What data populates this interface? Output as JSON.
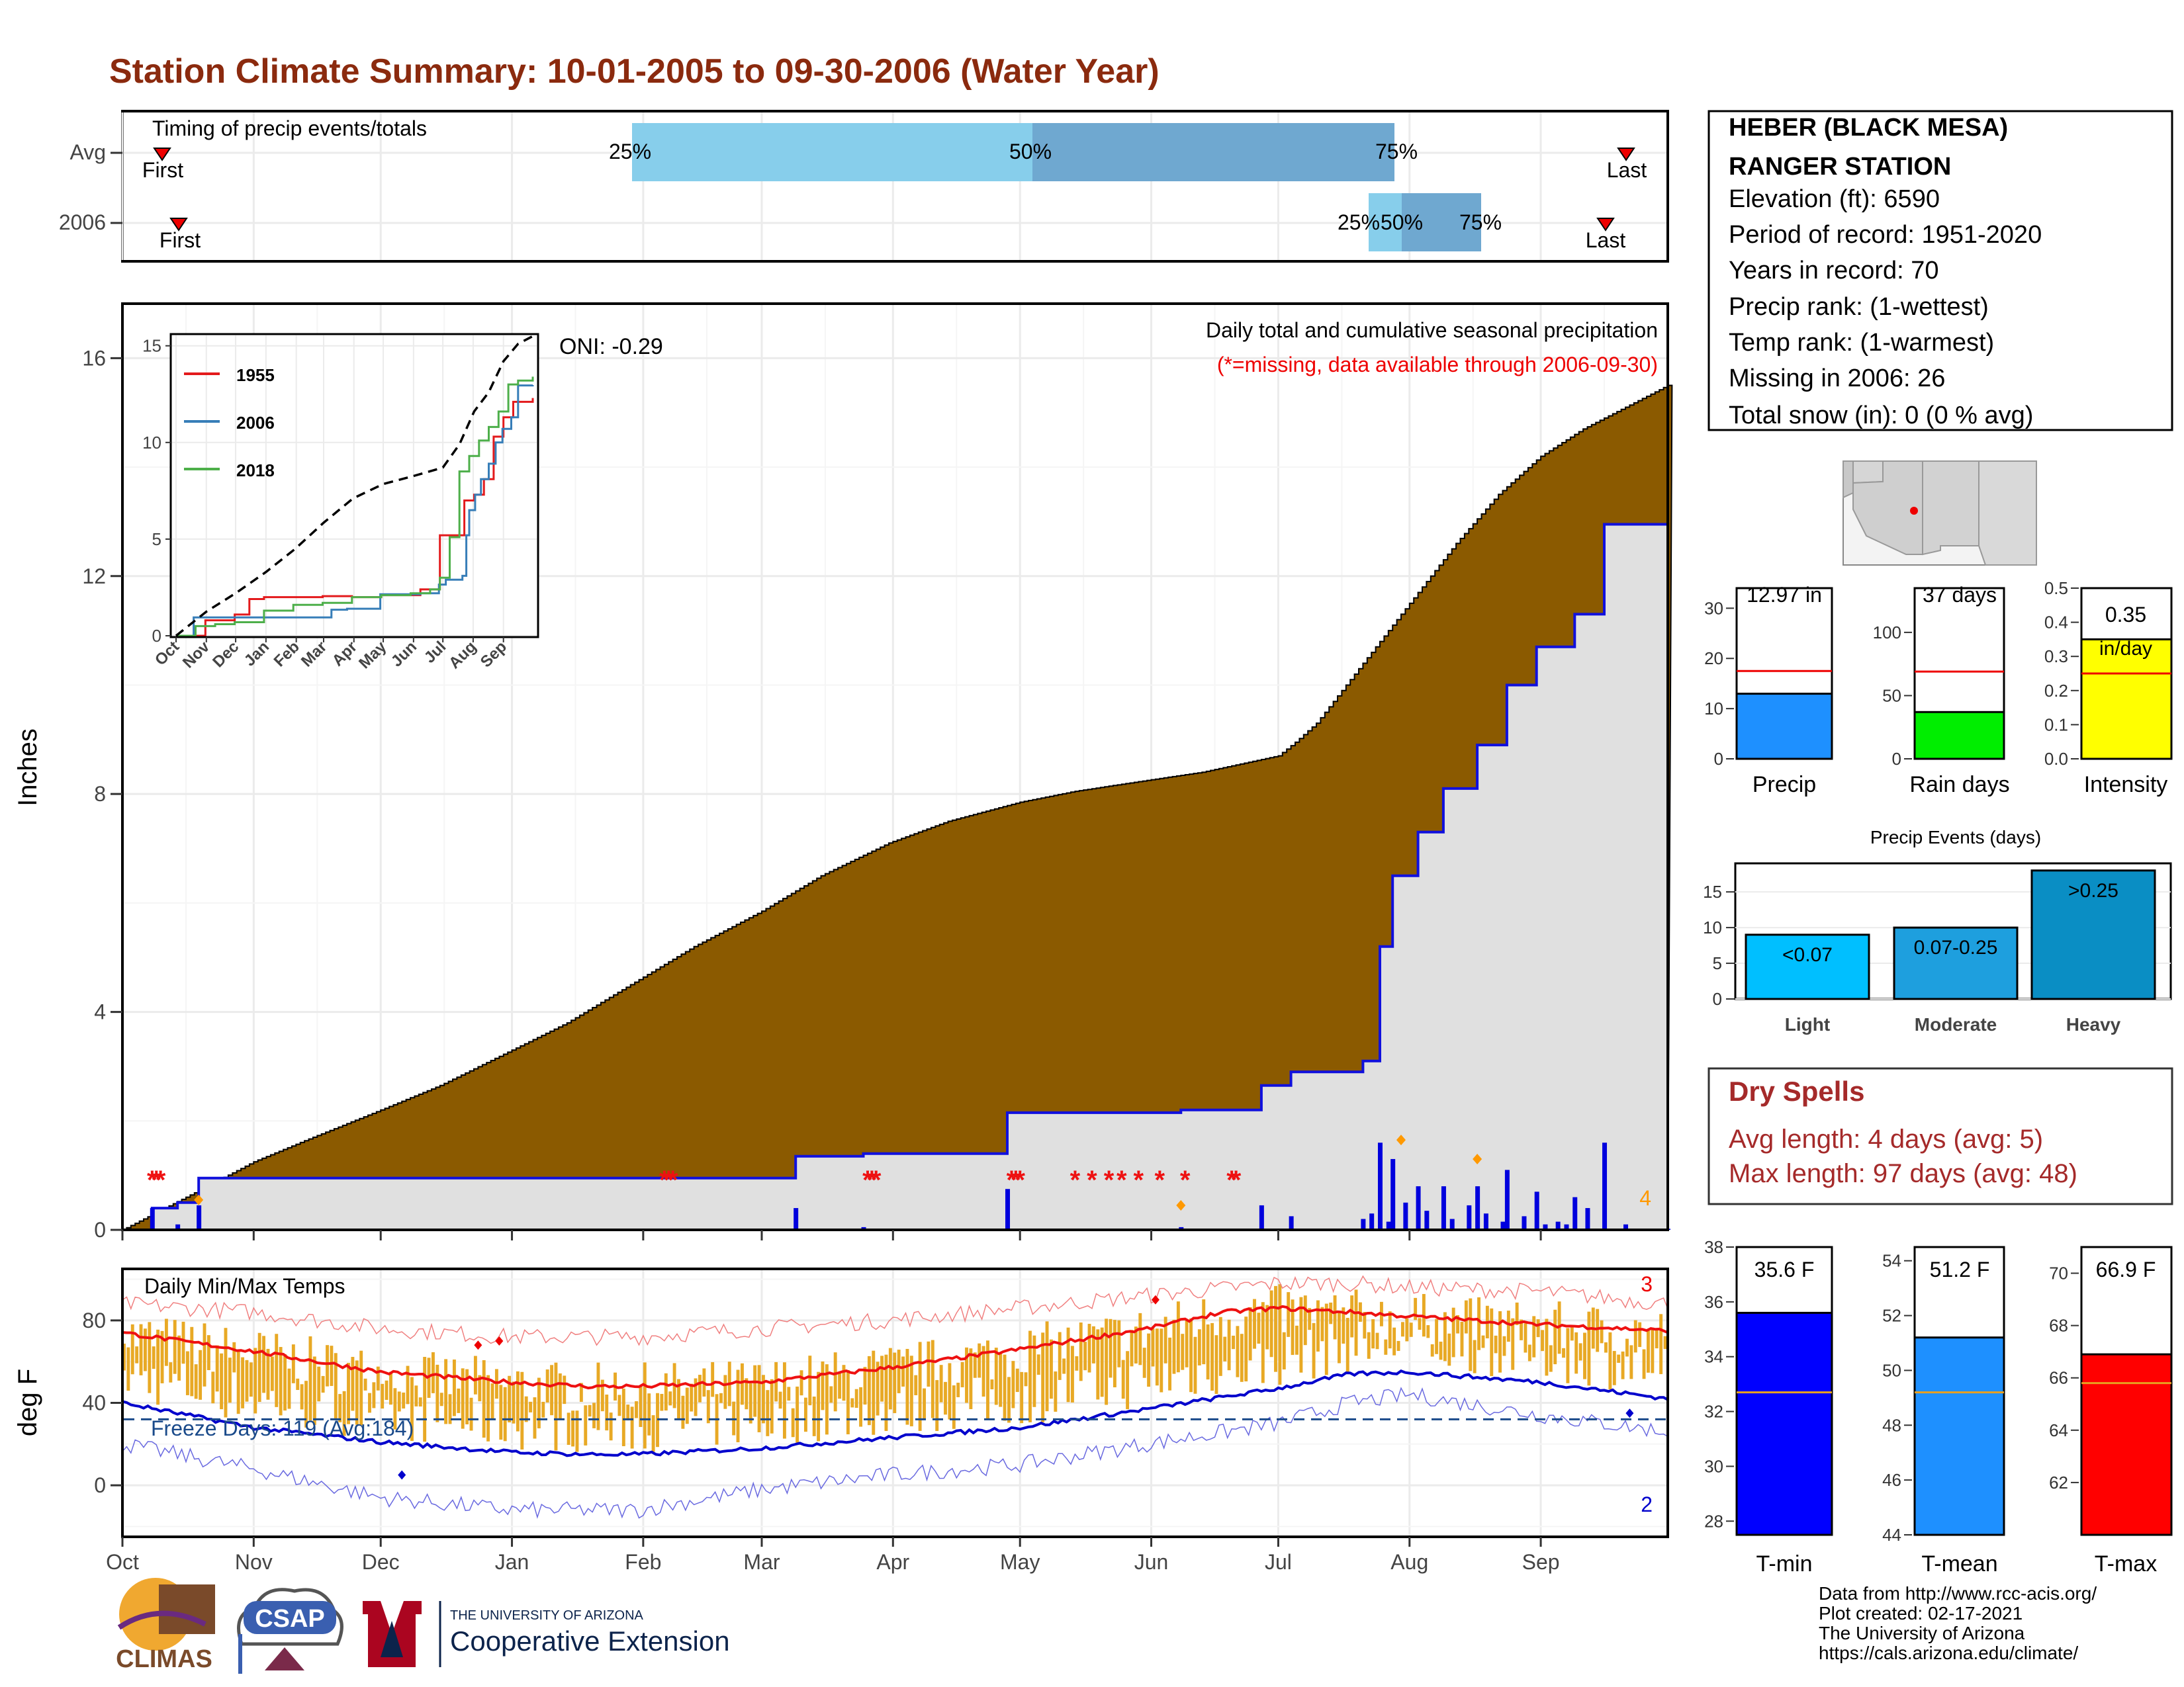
{
  "title": "Station Climate Summary: 10-01-2005 to 09-30-2006 (Water Year)",
  "colors": {
    "title": "#8b2a0e",
    "cum_fill": "#8b5a00",
    "avg_fill": "#e0e0e0",
    "precip_bar": "#0000dd",
    "quart_light": "#87ceeb",
    "quart_dark": "#6fa8d0",
    "temp_bar": "#e8a925",
    "tmax_line": "#ee1111",
    "tmin_line": "#0000cc",
    "missing": "#ee1111",
    "extreme": "#ff9900"
  },
  "timing": {
    "label": "Timing of precip events/totals",
    "rows": [
      "Avg",
      "2006"
    ],
    "first_label": "First",
    "last_label": "Last",
    "quartile_labels": [
      "25%",
      "50%",
      "75%"
    ]
  },
  "station": {
    "lines": [
      "HEBER (BLACK MESA)",
      "RANGER STATION",
      "Elevation (ft): 6590",
      "Period of record: 1951-2020",
      "Years in record: 70",
      "Precip rank:  (1-wettest)",
      "Temp rank:  (1-warmest)",
      "Missing in 2006: 26",
      "Total snow (in): 0 (0 % avg)"
    ]
  },
  "main_plot": {
    "ylabel": "Inches",
    "title_line1": "Daily total and cumulative seasonal precipitation",
    "title_line2": "(*=missing, data available through 2006-09-30)",
    "oni": "ONI: -0.29",
    "extreme_count": "4",
    "month_labels": [
      "Oct",
      "Nov",
      "Dec",
      "Jan",
      "Feb",
      "Mar",
      "Apr",
      "May",
      "Jun",
      "Jul",
      "Aug",
      "Sep"
    ]
  },
  "inset": {
    "legend": [
      "1955",
      "2006",
      "2018"
    ],
    "month_labels": [
      "Oct",
      "Nov",
      "Dec",
      "Jan",
      "Feb",
      "Mar",
      "Apr",
      "May",
      "Jun",
      "Jul",
      "Aug",
      "Sep"
    ]
  },
  "summary_bars": {
    "precip": {
      "value_label": "12.97 in",
      "xlabel": "Precip"
    },
    "rain_days": {
      "value_label": "37 days",
      "xlabel": "Rain days"
    },
    "intensity": {
      "value_label": "0.35",
      "unit_label": "in/day",
      "xlabel": "Intensity"
    }
  },
  "precip_events": {
    "title": "Precip Events (days)",
    "categories": [
      "Light",
      "Moderate",
      "Heavy"
    ],
    "bar_labels": [
      "<0.07",
      "0.07-0.25",
      ">0.25"
    ]
  },
  "dry_spells": {
    "title": "Dry Spells",
    "avg": "Avg length: 4 days (avg: 5)",
    "max": "Max length: 97 days (avg: 48)"
  },
  "temp_plot": {
    "ylabel": "deg F",
    "label": "Daily Min/Max Temps",
    "freeze": "Freeze Days: 119 (Avg:184)",
    "count_high": "3",
    "count_low": "2"
  },
  "temp_summary": {
    "tmin": {
      "value_label": "35.6 F",
      "xlabel": "T-min"
    },
    "tmean": {
      "value_label": "51.2 F",
      "xlabel": "T-mean"
    },
    "tmax": {
      "value_label": "66.9 F",
      "xlabel": "T-max"
    }
  },
  "footer": {
    "lines": [
      "Data from http://www.rcc-acis.org/",
      "Plot created: 02-17-2021",
      "The University of Arizona",
      "https://cals.arizona.edu/climate/"
    ],
    "logo_climas": "CLIMAS",
    "logo_csap": "CSAP",
    "ua_small": "THE UNIVERSITY OF ARIZONA",
    "ua_big": "Cooperative Extension"
  },
  "chart_data": [
    {
      "type": "area",
      "title": "Daily total and cumulative seasonal precipitation",
      "xlabel": "",
      "ylabel": "Inches",
      "ylim": [
        0,
        17
      ],
      "x_ticks": [
        "Oct",
        "Nov",
        "Dec",
        "Jan",
        "Feb",
        "Mar",
        "Apr",
        "May",
        "Jun",
        "Jul",
        "Aug",
        "Sep"
      ],
      "y_ticks": [
        0,
        4,
        8,
        12,
        16
      ],
      "series": [
        {
          "name": "avg_cumulative",
          "x_day": [
            0,
            10,
            20,
            31,
            45,
            61,
            75,
            92,
            105,
            120,
            135,
            151,
            165,
            181,
            195,
            212,
            225,
            242,
            255,
            273,
            277,
            282,
            288,
            295,
            305,
            315,
            325,
            335,
            345,
            355,
            365
          ],
          "values": [
            0,
            0.4,
            0.8,
            1.25,
            1.7,
            2.2,
            2.65,
            3.3,
            3.8,
            4.5,
            5.2,
            5.85,
            6.5,
            7.1,
            7.5,
            7.85,
            8.05,
            8.25,
            8.4,
            8.7,
            8.95,
            9.3,
            9.9,
            10.6,
            11.6,
            12.6,
            13.5,
            14.2,
            14.7,
            15.1,
            15.5
          ]
        },
        {
          "name": "2006_cumulative",
          "x_day": [
            0,
            7,
            13,
            18,
            120,
            159,
            175,
            209,
            250,
            269,
            276,
            293,
            297,
            300,
            306,
            312,
            320,
            327,
            334,
            343,
            350,
            365
          ],
          "values": [
            0,
            0.4,
            0.5,
            0.95,
            0.95,
            1.35,
            1.4,
            2.15,
            2.2,
            2.65,
            2.9,
            3.1,
            5.2,
            6.5,
            7.3,
            8.1,
            8.9,
            10.0,
            10.7,
            11.3,
            12.95,
            12.97
          ]
        }
      ],
      "missing_days": [
        7,
        8,
        9,
        128,
        129,
        130,
        176,
        177,
        178,
        210,
        211,
        212,
        225,
        229,
        233,
        236,
        240,
        245,
        251,
        262,
        263
      ],
      "daily_precip_marks": "blue bars along baseline (0-1.6 in)"
    },
    {
      "type": "line",
      "title": "",
      "ylim": [
        0,
        15
      ],
      "x_ticks": [
        "Oct",
        "Nov",
        "Dec",
        "Jan",
        "Feb",
        "Mar",
        "Apr",
        "May",
        "Jun",
        "Jul",
        "Aug",
        "Sep"
      ],
      "y_ticks": [
        0,
        5,
        10,
        15
      ],
      "series": [
        {
          "name": "1955",
          "x_day": [
            0,
            30,
            60,
            75,
            90,
            120,
            150,
            180,
            210,
            250,
            270,
            290,
            295,
            305,
            315,
            325,
            335,
            345,
            365
          ],
          "values": [
            0,
            0.8,
            1.1,
            1.9,
            2.0,
            2.0,
            2.05,
            2.0,
            2.1,
            2.4,
            5.2,
            5.2,
            7.0,
            7.3,
            8.1,
            10.3,
            11.3,
            12.1,
            12.3
          ]
        },
        {
          "name": "2006",
          "x_day": [
            0,
            18,
            120,
            159,
            175,
            209,
            250,
            269,
            276,
            293,
            297,
            300,
            306,
            312,
            320,
            327,
            334,
            343,
            350,
            365
          ],
          "values": [
            0,
            0.95,
            0.95,
            1.35,
            1.4,
            2.15,
            2.2,
            2.65,
            2.9,
            3.1,
            5.2,
            6.5,
            7.3,
            8.1,
            8.9,
            10.0,
            10.7,
            11.3,
            12.95,
            12.97
          ]
        },
        {
          "name": "2018",
          "x_day": [
            0,
            20,
            40,
            60,
            90,
            120,
            150,
            180,
            210,
            240,
            260,
            270,
            280,
            290,
            300,
            310,
            320,
            330,
            340,
            350,
            365
          ],
          "values": [
            0,
            0.5,
            0.6,
            0.7,
            1.3,
            1.6,
            1.7,
            2.0,
            2.1,
            2.2,
            2.4,
            3.0,
            5.1,
            8.5,
            9.3,
            10.1,
            10.8,
            11.6,
            13.0,
            13.2,
            13.4
          ]
        },
        {
          "name": "avg",
          "x_day": [
            0,
            31,
            61,
            92,
            122,
            151,
            181,
            212,
            242,
            273,
            290,
            305,
            320,
            335,
            350,
            365
          ],
          "values": [
            0,
            1.25,
            2.2,
            3.3,
            4.5,
            5.85,
            7.1,
            7.85,
            8.25,
            8.7,
            9.9,
            11.6,
            12.6,
            14.2,
            15.1,
            15.5
          ]
        }
      ]
    },
    {
      "type": "bar",
      "title": "",
      "series": [
        {
          "name": "Precip",
          "values": [
            12.97
          ],
          "avg": 17.5,
          "ylim": [
            0,
            34
          ],
          "y_ticks": [
            0,
            10,
            20,
            30
          ]
        },
        {
          "name": "Rain days",
          "values": [
            37
          ],
          "avg": 69,
          "ylim": [
            0,
            135
          ],
          "y_ticks": [
            0,
            50,
            100
          ]
        },
        {
          "name": "Intensity",
          "values": [
            0.35
          ],
          "avg": 0.25,
          "ylim": [
            0,
            0.5
          ],
          "y_ticks": [
            0.0,
            0.1,
            0.2,
            0.3,
            0.4,
            0.5
          ]
        }
      ]
    },
    {
      "type": "bar",
      "title": "Precip Events (days)",
      "categories": [
        "Light",
        "Moderate",
        "Heavy"
      ],
      "values": [
        9,
        10,
        18
      ],
      "ylim": [
        0,
        19
      ],
      "y_ticks": [
        0,
        5,
        10,
        15
      ]
    },
    {
      "type": "line",
      "title": "Daily Min/Max Temps",
      "ylabel": "deg F",
      "ylim": [
        -25,
        105
      ],
      "y_ticks": [
        0,
        40,
        80
      ],
      "x_ticks": [
        "Oct",
        "Nov",
        "Dec",
        "Jan",
        "Feb",
        "Mar",
        "Apr",
        "May",
        "Jun",
        "Jul",
        "Aug",
        "Sep"
      ],
      "freeze_line": 32,
      "series": [
        {
          "name": "avg_tmax",
          "x_day": [
            0,
            31,
            61,
            92,
            110,
            122,
            151,
            181,
            212,
            242,
            260,
            273,
            290,
            304,
            335,
            365
          ],
          "values": [
            74,
            65,
            55,
            50,
            48,
            48,
            50,
            57,
            66,
            76,
            84,
            86,
            84,
            82,
            78,
            75
          ]
        },
        {
          "name": "avg_tmin",
          "x_day": [
            0,
            31,
            61,
            92,
            110,
            122,
            151,
            181,
            212,
            242,
            273,
            290,
            304,
            335,
            365
          ],
          "values": [
            40,
            28,
            21,
            16,
            15,
            15,
            18,
            23,
            28,
            37,
            47,
            54,
            55,
            50,
            42
          ]
        },
        {
          "name": "record_high",
          "x_day": [
            0,
            31,
            61,
            92,
            122,
            151,
            181,
            212,
            242,
            273,
            290,
            304,
            335,
            365
          ],
          "values": [
            88,
            84,
            76,
            72,
            72,
            76,
            80,
            86,
            92,
            98,
            98,
            96,
            94,
            88
          ]
        },
        {
          "name": "record_low",
          "x_day": [
            0,
            31,
            61,
            92,
            122,
            151,
            181,
            212,
            242,
            273,
            290,
            304,
            335,
            365
          ],
          "values": [
            20,
            8,
            -6,
            -12,
            -12,
            -2,
            5,
            10,
            20,
            30,
            40,
            44,
            34,
            26
          ]
        }
      ]
    },
    {
      "type": "bar",
      "title": "",
      "series": [
        {
          "name": "T-min",
          "values": [
            35.6
          ],
          "avg": 32.7,
          "ylim": [
            27.5,
            38
          ],
          "y_ticks": [
            28,
            30,
            32,
            34,
            36,
            38
          ]
        },
        {
          "name": "T-mean",
          "values": [
            51.2
          ],
          "avg": 49.2,
          "ylim": [
            44,
            54.5
          ],
          "y_ticks": [
            44,
            46,
            48,
            50,
            52,
            54
          ]
        },
        {
          "name": "T-max",
          "values": [
            66.9
          ],
          "avg": 65.8,
          "ylim": [
            60,
            71
          ],
          "y_ticks": [
            62,
            64,
            66,
            68,
            70
          ]
        }
      ]
    }
  ]
}
